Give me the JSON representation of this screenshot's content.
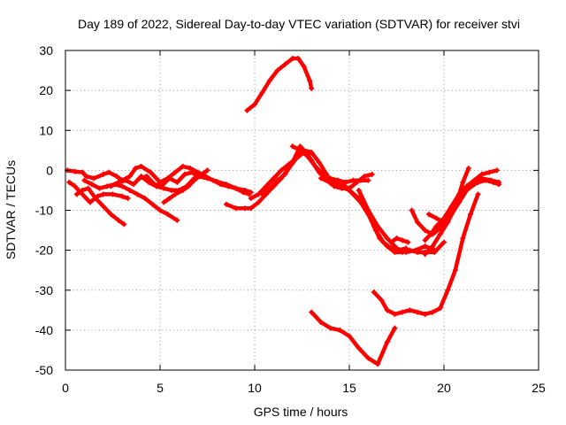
{
  "chart_data": {
    "type": "scatter",
    "title": "Day 189 of 2022, Sidereal Day-to-day VTEC variation (SDTVAR) for receiver stvi",
    "xlabel": "GPS time / hours",
    "ylabel": "SDTVAR / TECUs",
    "xlim": [
      0,
      25
    ],
    "ylim": [
      -50,
      30
    ],
    "xticks": [
      0,
      5,
      10,
      15,
      20,
      25
    ],
    "yticks": [
      -50,
      -40,
      -30,
      -20,
      -10,
      0,
      10,
      20,
      30
    ],
    "grid": true,
    "color": "#ff0000",
    "series": [
      {
        "x": [
          0.1,
          0.5,
          0.9,
          1.1,
          1.5,
          2.0,
          2.3,
          2.7,
          3.0,
          3.4,
          3.7,
          4.0,
          4.5,
          5.0,
          5.4,
          5.8,
          6.2,
          6.6,
          7.0,
          7.4,
          7.8,
          8.2,
          8.6,
          9.0,
          9.4,
          9.7
        ],
        "y": [
          0,
          -0.3,
          -0.5,
          -1.5,
          -2,
          -1,
          -0.5,
          -1.5,
          -2.5,
          -1.5,
          0.5,
          1,
          -0.5,
          -3,
          -2,
          -0.5,
          1,
          0.5,
          -0.5,
          -1.5,
          -2.5,
          -3.5,
          -4,
          -4.5,
          -5.5,
          -6
        ]
      },
      {
        "x": [
          0.2,
          0.5,
          0.8,
          1.1,
          1.3,
          1.7,
          2.0,
          2.5,
          3.0,
          3.3
        ],
        "y": [
          -3,
          -4,
          -5.5,
          -7,
          -8,
          -6.5,
          -6,
          -6,
          -6.5,
          -7
        ]
      },
      {
        "x": [
          0.6,
          0.9,
          1.2,
          1.6,
          2.0,
          2.4,
          2.8,
          3.1
        ],
        "y": [
          -6,
          -5,
          -4.5,
          -7,
          -9,
          -11,
          -12.5,
          -13.5
        ]
      },
      {
        "x": [
          1.0,
          1.4,
          1.8,
          2.2,
          2.6,
          3.0,
          3.4,
          3.8,
          4.2,
          4.6,
          5.0,
          5.4,
          5.9
        ],
        "y": [
          -2.5,
          -3.5,
          -4.5,
          -4,
          -3.5,
          -4,
          -5,
          -6,
          -7,
          -8.5,
          -10,
          -11,
          -12.5
        ]
      },
      {
        "x": [
          2.4,
          2.8,
          3.2,
          3.6,
          3.9,
          4.3,
          4.7,
          5.1,
          5.5,
          5.9,
          6.3,
          6.7,
          7.0,
          7.5,
          8.0,
          8.5,
          9.0,
          9.5,
          9.8
        ],
        "y": [
          -4,
          -3,
          -2.5,
          -3.5,
          -2,
          -1.5,
          -3.5,
          -3.8,
          -2,
          -3,
          -1,
          -0.5,
          -1.5,
          -2,
          -2.8,
          -3.5,
          -4.5,
          -5,
          -5.5
        ]
      },
      {
        "x": [
          4.0,
          4.4,
          4.8,
          5.2,
          5.6,
          6.0,
          6.4,
          6.8,
          7.2
        ],
        "y": [
          -1.5,
          -3,
          -4,
          -4.5,
          -5,
          -5,
          -4,
          -2,
          -1.5
        ]
      },
      {
        "x": [
          5.2,
          5.5,
          5.8,
          6.2,
          6.5,
          6.8,
          7.2,
          7.5
        ],
        "y": [
          -8,
          -7,
          -6,
          -5,
          -4,
          -2.5,
          -1,
          0
        ]
      },
      {
        "x": [
          8.5,
          9.0,
          9.5,
          9.8,
          10.2,
          10.6,
          11.0,
          11.4,
          11.8,
          12.2,
          12.6,
          13.0,
          13.4,
          13.8,
          14.2,
          14.6,
          15.0,
          15.4,
          15.8,
          16.2
        ],
        "y": [
          -8.5,
          -9.5,
          -9.5,
          -9.5,
          -8,
          -6,
          -4,
          -2,
          0.5,
          3,
          4.5,
          2.5,
          -0.5,
          -2.5,
          -4,
          -4.5,
          -4.5,
          -3,
          -1.5,
          -1
        ]
      },
      {
        "x": [
          9.8,
          10.2,
          10.6,
          11.0,
          11.4,
          11.8,
          12.2,
          12.6,
          13.0,
          13.4,
          13.8
        ],
        "y": [
          -7,
          -6,
          -4,
          -2,
          0,
          1.5,
          3,
          5,
          4.5,
          2,
          -1
        ]
      },
      {
        "x": [
          10.4,
          10.8,
          11.2,
          11.6,
          12.0,
          12.4,
          12.8,
          13.2,
          13.6,
          14.0,
          14.4,
          14.8,
          15.2,
          15.6,
          16.0
        ],
        "y": [
          -6,
          -4.5,
          -2.5,
          -1,
          2,
          6,
          4,
          1,
          -1,
          -2,
          -2.5,
          -3,
          -2.5,
          -2.5,
          -2.5
        ]
      },
      {
        "x": [
          9.6,
          10.0,
          10.4,
          10.8,
          11.2,
          11.6,
          12.0,
          12.3,
          12.6,
          12.9,
          13.0
        ],
        "y": [
          15,
          16.5,
          19.5,
          22.5,
          25,
          26.5,
          28,
          28,
          26,
          22.5,
          20.5
        ]
      },
      {
        "x": [
          13.0,
          13.5,
          14.0,
          14.5,
          15.0,
          15.5,
          16.0,
          16.5,
          17.0,
          17.4
        ],
        "y": [
          -35.5,
          -38,
          -39.5,
          -40,
          -41.5,
          -44.5,
          -47,
          -48.5,
          -43,
          -39.5
        ]
      },
      {
        "x": [
          12.0,
          12.4,
          12.8,
          13.2,
          13.6,
          14.0,
          14.4,
          14.8,
          15.2,
          15.6,
          16.0,
          16.4,
          16.8,
          17.2,
          17.6,
          18.0
        ],
        "y": [
          6,
          5,
          3.5,
          1,
          -1,
          -3,
          -3.5,
          -4,
          -6,
          -8,
          -11,
          -15,
          -18,
          -19.5,
          -20,
          -19.5
        ]
      },
      {
        "x": [
          13.5,
          14.0,
          14.5,
          15.0,
          15.5,
          16.0,
          16.5,
          17.0,
          17.5,
          18.0,
          18.5,
          19.0,
          19.5
        ],
        "y": [
          -2,
          -3,
          -4,
          -5,
          -7,
          -10,
          -14,
          -17,
          -19.5,
          -20.5,
          -20,
          -19,
          -20
        ]
      },
      {
        "x": [
          15.5,
          16.0,
          16.3,
          16.6,
          17.0,
          17.4,
          17.8,
          18.2,
          18.6,
          19.0,
          19.5,
          20.0
        ],
        "y": [
          -5,
          -10,
          -14,
          -17,
          -19,
          -20.5,
          -20.5,
          -20,
          -20.5,
          -20.5,
          -20.5,
          -18
        ]
      },
      {
        "x": [
          16.3,
          16.7,
          17.0,
          17.4,
          17.8,
          18.2,
          18.6,
          19.0,
          19.4,
          19.8,
          20.2,
          20.6,
          21.0,
          21.4,
          21.8
        ],
        "y": [
          -30.5,
          -32.5,
          -35,
          -36,
          -35.5,
          -35,
          -35.5,
          -36,
          -35.5,
          -34.5,
          -30,
          -25,
          -17,
          -11,
          -6
        ]
      },
      {
        "x": [
          18.3,
          18.6,
          19.0,
          19.4,
          19.8,
          20.2,
          20.6,
          21.0,
          21.4,
          21.8,
          22.2,
          22.6,
          22.9
        ],
        "y": [
          -10,
          -13,
          -15,
          -16,
          -14.5,
          -12,
          -9,
          -6,
          -4,
          -3,
          -2.5,
          -3,
          -3.5
        ]
      },
      {
        "x": [
          19.0,
          19.3,
          19.6,
          20.0,
          20.4,
          20.8,
          21.2,
          21.6,
          22.0,
          22.4,
          22.8
        ],
        "y": [
          -17.5,
          -16,
          -14,
          -12,
          -9,
          -6,
          -4,
          -2.5,
          -1,
          -0.5,
          0
        ]
      },
      {
        "x": [
          19.2,
          19.6,
          20.0,
          20.4,
          20.8,
          21.2,
          21.6,
          22.0,
          22.5,
          22.9
        ],
        "y": [
          -11,
          -12,
          -13,
          -11,
          -8,
          -5,
          -3.5,
          -2,
          -2.5,
          -3
        ]
      },
      {
        "x": [
          19.0,
          19.4,
          19.8,
          20.2,
          20.5,
          20.8,
          21.0,
          21.3
        ],
        "y": [
          -21,
          -19,
          -16,
          -13,
          -10,
          -6,
          -3,
          0.5
        ]
      },
      {
        "x": [
          17.2,
          17.5,
          17.8,
          18.1
        ],
        "y": [
          -18,
          -17,
          -17.5,
          -18
        ]
      }
    ]
  }
}
